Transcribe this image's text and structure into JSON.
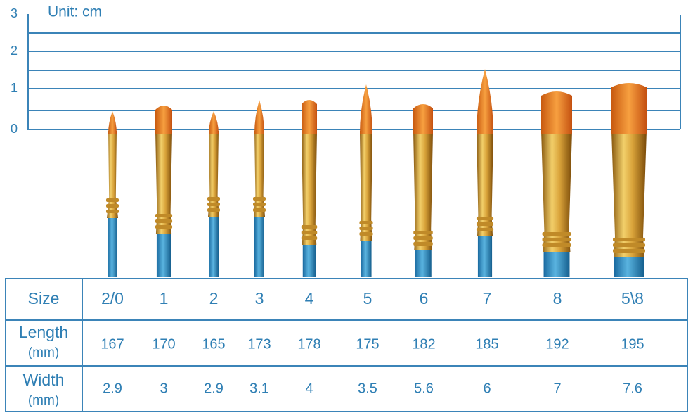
{
  "ruler": {
    "unit": "Unit: cm",
    "labels": [
      "3",
      "2",
      "1",
      "0"
    ]
  },
  "table": {
    "row_headers": [
      [
        "Size"
      ],
      [
        "Length",
        "(mm)"
      ],
      [
        "Width",
        "(mm)"
      ]
    ],
    "rows": [
      [
        "2/0",
        "1",
        "2",
        "3",
        "4",
        "5",
        "6",
        "7",
        "8",
        "5\\8"
      ],
      [
        "167",
        "170",
        "165",
        "173",
        "178",
        "175",
        "182",
        "185",
        "192",
        "195"
      ],
      [
        "2.9",
        "3",
        "2.9",
        "3.1",
        "4",
        "3.5",
        "5.6",
        "6",
        "7",
        "7.6"
      ]
    ]
  }
}
